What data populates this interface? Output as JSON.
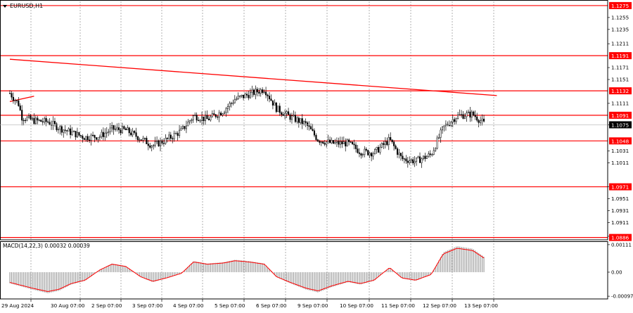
{
  "chart_data": [
    {
      "type": "candlestick",
      "title": "EURUSD,H1",
      "colors": {
        "candle": "#000000",
        "level_line": "#ff0000",
        "trendline": "#ff0000",
        "grid": "#7f7f7f",
        "background": "#ffffff"
      },
      "ylim": [
        1.0882,
        1.1282
      ],
      "y_ticks": [
        "1.1255",
        "1.1235",
        "1.1211",
        "1.1171",
        "1.1151",
        "1.1111",
        "1.1075",
        "1.1031",
        "1.1011",
        "1.0971",
        "1.0951",
        "1.0931",
        "1.0911",
        "1.0888"
      ],
      "levels": [
        {
          "label": "1.1275",
          "value": 1.1275
        },
        {
          "label": "1.1191",
          "value": 1.1191
        },
        {
          "label": "1.1132",
          "value": 1.1132
        },
        {
          "label": "1.1091",
          "value": 1.1091
        },
        {
          "label": "1.1048",
          "value": 1.1048
        },
        {
          "label": "1.0971",
          "value": 1.0971
        },
        {
          "label": "1.0886",
          "value": 1.0886
        }
      ],
      "current_price": "1.1075",
      "trendlines": [
        {
          "x0": "29 Aug 00:00",
          "y0": 1.1185,
          "x1": "13 Sep 21:00",
          "y1": 1.1124
        },
        {
          "x0": "29 Aug 00:00",
          "y0": 1.1114,
          "x1": "29 Aug 14:00",
          "y1": 1.1123
        }
      ],
      "x_ticks": [
        "29 Aug 2024",
        "30 Aug 07:00",
        "2 Sep 07:00",
        "3 Sep 07:00",
        "4 Sep 07:00",
        "5 Sep 07:00",
        "6 Sep 07:00",
        "9 Sep 07:00",
        "10 Sep 07:00",
        "11 Sep 07:00",
        "12 Sep 07:00",
        "13 Sep 07:00"
      ],
      "close_path": [
        [
          "29 Aug 2024",
          1.1128
        ],
        [
          "29 Aug 05:00",
          1.111
        ],
        [
          "29 Aug 07:00",
          1.1088
        ],
        [
          "29 Aug 14:00",
          1.1082
        ],
        [
          "29 Aug 22:00",
          1.108
        ],
        [
          "30 Aug 07:00",
          1.107
        ],
        [
          "30 Aug 14:00",
          1.1062
        ],
        [
          "30 Aug 22:00",
          1.1054
        ],
        [
          "2 Sep 07:00",
          1.1056
        ],
        [
          "2 Sep 14:00",
          1.1068
        ],
        [
          "2 Sep 22:00",
          1.1066
        ],
        [
          "3 Sep 07:00",
          1.1052
        ],
        [
          "3 Sep 14:00",
          1.104
        ],
        [
          "3 Sep 22:00",
          1.105
        ],
        [
          "4 Sep 07:00",
          1.1065
        ],
        [
          "4 Sep 14:00",
          1.109
        ],
        [
          "4 Sep 22:00",
          1.1084
        ],
        [
          "5 Sep 07:00",
          1.1098
        ],
        [
          "5 Sep 14:00",
          1.1118
        ],
        [
          "5 Sep 22:00",
          1.1126
        ],
        [
          "6 Sep 07:00",
          1.1135
        ],
        [
          "6 Sep 14:00",
          1.1102
        ],
        [
          "6 Sep 22:00",
          1.1088
        ],
        [
          "9 Sep 07:00",
          1.1076
        ],
        [
          "9 Sep 14:00",
          1.105
        ],
        [
          "9 Sep 22:00",
          1.1044
        ],
        [
          "10 Sep 07:00",
          1.1044
        ],
        [
          "10 Sep 14:00",
          1.103
        ],
        [
          "10 Sep 22:00",
          1.1028
        ],
        [
          "11 Sep 07:00",
          1.105
        ],
        [
          "11 Sep 14:00",
          1.1018
        ],
        [
          "11 Sep 22:00",
          1.1014
        ],
        [
          "12 Sep 07:00",
          1.1025
        ],
        [
          "12 Sep 14:00",
          1.107
        ],
        [
          "12 Sep 22:00",
          1.109
        ],
        [
          "13 Sep 07:00",
          1.1093
        ],
        [
          "13 Sep 14:00",
          1.1076
        ]
      ]
    },
    {
      "type": "histogram",
      "title": "MACD(14,22,3) 0.00032 0.00039",
      "ylim": [
        -0.00108,
        0.00122
      ],
      "y_ticks": [
        "0.00111",
        "0.00",
        "-0.00097"
      ],
      "signal_color": "#ff0000",
      "values_by_time": [
        [
          "29 Aug 2024",
          -0.00045
        ],
        [
          "29 Aug 14:00",
          -0.00072
        ],
        [
          "29 Aug 22:00",
          -0.00085
        ],
        [
          "30 Aug 07:00",
          -0.00075
        ],
        [
          "30 Aug 14:00",
          -0.0005
        ],
        [
          "30 Aug 22:00",
          -0.00035
        ],
        [
          "2 Sep 07:00",
          0.0001
        ],
        [
          "2 Sep 14:00",
          0.00035
        ],
        [
          "2 Sep 22:00",
          0.00025
        ],
        [
          "3 Sep 07:00",
          -0.0002
        ],
        [
          "3 Sep 14:00",
          -0.0004
        ],
        [
          "3 Sep 22:00",
          -0.00025
        ],
        [
          "4 Sep 07:00",
          -5e-05
        ],
        [
          "4 Sep 14:00",
          0.00045
        ],
        [
          "4 Sep 22:00",
          0.00035
        ],
        [
          "5 Sep 07:00",
          0.0004
        ],
        [
          "5 Sep 14:00",
          0.0005
        ],
        [
          "5 Sep 22:00",
          0.00045
        ],
        [
          "6 Sep 07:00",
          0.00035
        ],
        [
          "6 Sep 14:00",
          -0.0002
        ],
        [
          "6 Sep 22:00",
          -0.00045
        ],
        [
          "9 Sep 07:00",
          -0.0007
        ],
        [
          "9 Sep 14:00",
          -0.00082
        ],
        [
          "9 Sep 22:00",
          -0.0006
        ],
        [
          "10 Sep 07:00",
          -0.0004
        ],
        [
          "10 Sep 14:00",
          -0.0005
        ],
        [
          "10 Sep 22:00",
          -0.00035
        ],
        [
          "11 Sep 07:00",
          0.0002
        ],
        [
          "11 Sep 14:00",
          -0.00025
        ],
        [
          "11 Sep 22:00",
          -0.00035
        ],
        [
          "12 Sep 07:00",
          -0.0001
        ],
        [
          "12 Sep 14:00",
          0.0008
        ],
        [
          "12 Sep 22:00",
          0.00105
        ],
        [
          "13 Sep 07:00",
          0.00095
        ],
        [
          "13 Sep 14:00",
          0.0006
        ]
      ]
    }
  ]
}
